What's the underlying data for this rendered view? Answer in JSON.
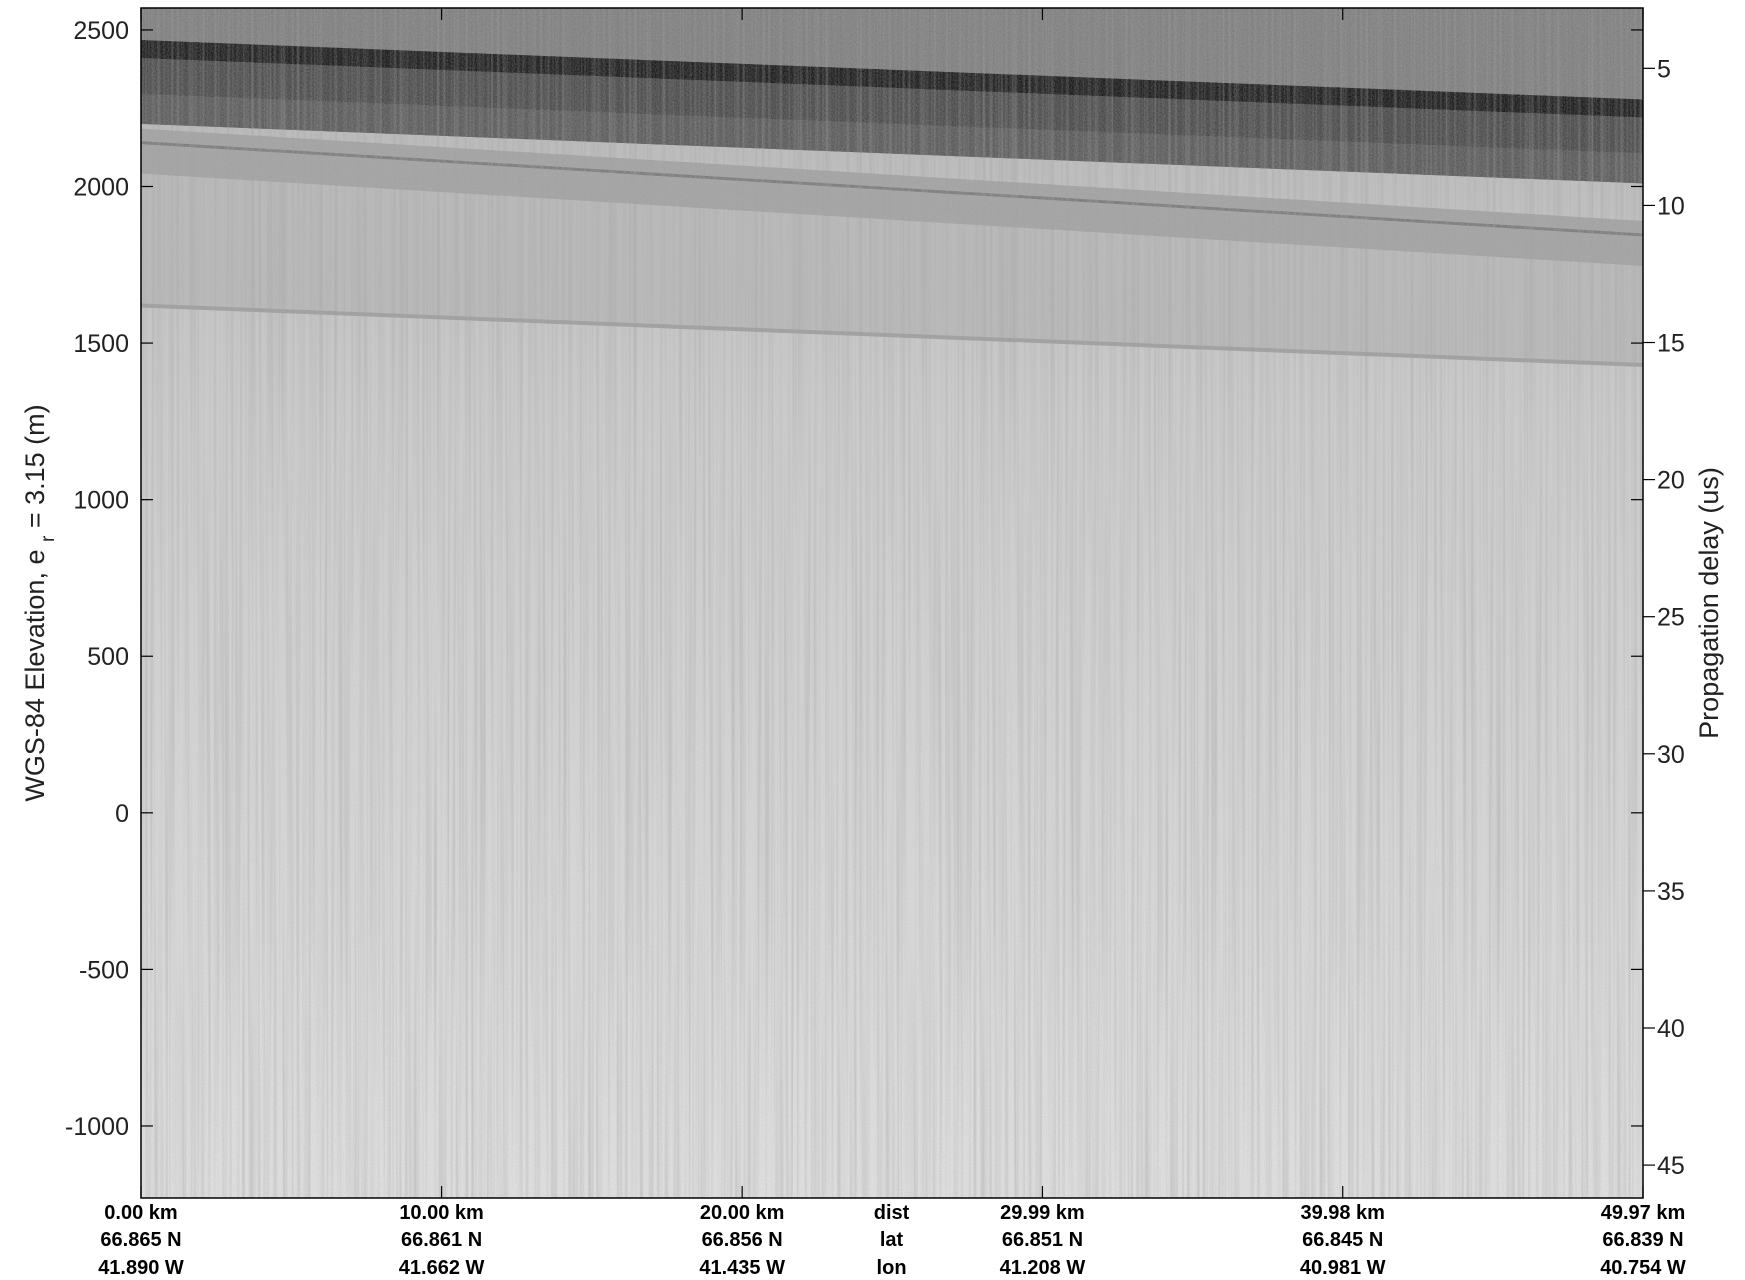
{
  "chart_data": {
    "type": "heatmap",
    "description_kind": "radar echogram (grayscale)",
    "title": "",
    "ylabel_left": {
      "prefix": "WGS-84 Elevation, e",
      "subscript": "r",
      "suffix": " = 3.15 (m)"
    },
    "ylabel_right": "Propagation delay (us)",
    "ylim_left": [
      -1230,
      2570
    ],
    "left_ticks": [
      {
        "value": 2500,
        "label": "2500"
      },
      {
        "value": 2000,
        "label": "2000"
      },
      {
        "value": 1500,
        "label": "1500"
      },
      {
        "value": 1000,
        "label": "1000"
      },
      {
        "value": 500,
        "label": "500"
      },
      {
        "value": 0,
        "label": "0"
      },
      {
        "value": -500,
        "label": "-500"
      },
      {
        "value": -1000,
        "label": "-1000"
      }
    ],
    "right_axis": {
      "delay_at_top_us": 2.8,
      "delay_at_bottom_us": 46.2,
      "ticks": [
        {
          "value": 5,
          "label": "5"
        },
        {
          "value": 10,
          "label": "10"
        },
        {
          "value": 15,
          "label": "15"
        },
        {
          "value": 20,
          "label": "20"
        },
        {
          "value": 25,
          "label": "25"
        },
        {
          "value": 30,
          "label": "30"
        },
        {
          "value": 35,
          "label": "35"
        },
        {
          "value": 40,
          "label": "40"
        },
        {
          "value": 45,
          "label": "45"
        }
      ]
    },
    "x_axis": {
      "xlim_km": [
        0,
        49.97
      ],
      "row_labels": [
        "dist",
        "lat",
        "lon"
      ],
      "row_labels_at_km": 24.97,
      "ticks": [
        {
          "km": 0.0,
          "dist": "0.00 km",
          "lat": "66.865 N",
          "lon": "41.890 W"
        },
        {
          "km": 10.0,
          "dist": "10.00 km",
          "lat": "66.861 N",
          "lon": "41.662 W"
        },
        {
          "km": 20.0,
          "dist": "20.00 km",
          "lat": "66.856 N",
          "lon": "41.435 W"
        },
        {
          "km": 29.99,
          "dist": "29.99 km",
          "lat": "66.851 N",
          "lon": "41.208 W"
        },
        {
          "km": 39.98,
          "dist": "39.98 km",
          "lat": "66.845 N",
          "lon": "40.981 W"
        },
        {
          "km": 49.97,
          "dist": "49.97 km",
          "lat": "66.839 N",
          "lon": "40.754 W"
        }
      ]
    },
    "layers": [
      {
        "name": "air",
        "shade": "#7e7e7e",
        "top": "top",
        "elev_start": 2570,
        "elev_end": 2570
      },
      {
        "name": "surface",
        "shade": "#1a1a1a",
        "elev_start": 2455,
        "elev_end": 2265
      },
      {
        "name": "near-surface",
        "shade": "#4e4e4e",
        "elev_start": 2200,
        "elev_end": 2010
      },
      {
        "name": "internal-bright",
        "shade": "#9a9a9a",
        "elev_start": 2185,
        "elev_end": 1890
      },
      {
        "name": "firn",
        "shade": "#b8b8b8",
        "elev_start": 1620,
        "elev_end": 1430
      },
      {
        "name": "deep-ice",
        "shade": "#d6d6d6",
        "elev_start": -1230,
        "elev_end": -1230
      }
    ],
    "colors": {
      "dark": "#141414",
      "mid": "#8a8a8a",
      "light": "#e2e2e2",
      "axis": "#000000"
    },
    "grid": false
  }
}
